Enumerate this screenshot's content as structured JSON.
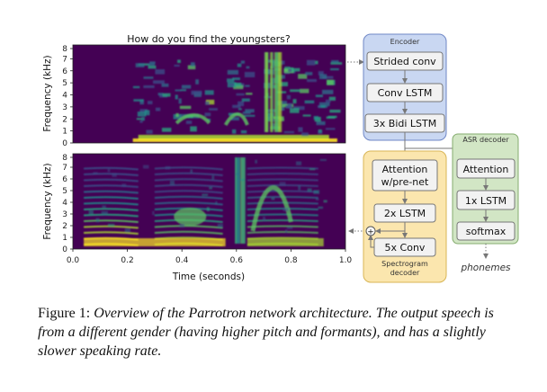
{
  "spectrogram": {
    "title": "How do you find the youngsters?",
    "ylabel": "Frequency (kHz)",
    "xlabel": "Time (seconds)",
    "yticks": [
      "0",
      "1",
      "2",
      "3",
      "4",
      "5",
      "6",
      "7",
      "8"
    ],
    "xticks": [
      "0.0",
      "0.2",
      "0.4",
      "0.6",
      "0.8",
      "1.0"
    ]
  },
  "encoder": {
    "title": "Encoder",
    "blocks": [
      "Strided conv",
      "Conv LSTM",
      "3x Bidi LSTM"
    ]
  },
  "asr_decoder": {
    "title": "ASR decoder",
    "blocks": [
      "Attention",
      "1x LSTM",
      "softmax"
    ],
    "output": "phonemes"
  },
  "spectrogram_decoder": {
    "title_line1": "Spectrogram",
    "title_line2": "decoder",
    "attention_line1": "Attention",
    "attention_line2": "w/pre-net",
    "lstm": "2x LSTM",
    "conv": "5x Conv",
    "plus": "+"
  },
  "caption": {
    "label": "Figure 1:",
    "text": "Overview of the Parrotron network architecture. The output speech is from a different gender (having higher pitch and formants), and has a slightly slower speaking rate."
  },
  "colors": {
    "encoder_fill": "#c9d7f2",
    "encoder_border": "#6f87c6",
    "asr_fill": "#d2e6c5",
    "asr_border": "#84ac6e",
    "spec_fill": "#fbe6ae",
    "spec_border": "#d8b555",
    "block_fill": "#f2f2f2",
    "block_border": "#777777",
    "spectrogram_bg": "#440154"
  }
}
